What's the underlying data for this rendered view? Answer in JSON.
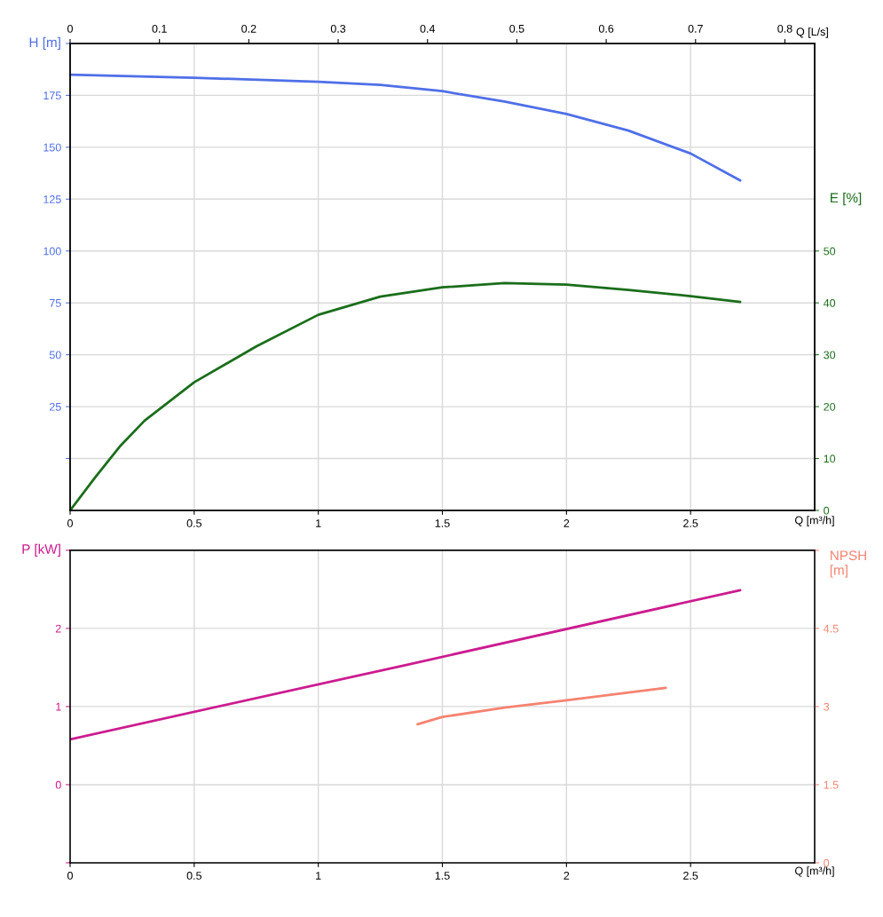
{
  "chart_data": [
    {
      "type": "line",
      "xlim": [
        0,
        3
      ],
      "xticks": [
        0,
        0.5,
        1,
        1.5,
        2,
        2.5
      ],
      "xlabel": "Q [m³/h]",
      "x2lim": [
        0,
        0.8333
      ],
      "x2ticks": [
        0,
        0.1,
        0.2,
        0.3,
        0.4,
        0.5,
        0.6,
        0.7,
        0.8
      ],
      "x2label": "Q [L/s]",
      "ylim": [
        -25,
        200
      ],
      "yticks": [
        {
          "value": 0,
          "label": null
        },
        25,
        50,
        75,
        100,
        125,
        150,
        175,
        {
          "value": 200,
          "label": null
        }
      ],
      "ylabel": "H [m]",
      "y2lim": [
        0,
        90
      ],
      "y2ticks": [
        0,
        10,
        20,
        30,
        40,
        50
      ],
      "y2label": "E [%]",
      "grid": true,
      "series": [
        {
          "color": "#4f6fe8",
          "x": [
            0,
            0.5,
            1,
            1.25,
            1.5,
            1.75,
            2,
            2.25,
            2.5,
            2.7
          ],
          "values": [
            185,
            183.5,
            181.5,
            180,
            177,
            172,
            166,
            158,
            147,
            134
          ]
        },
        {
          "color": "#1a6e1a",
          "axis": "y2",
          "x": [
            0,
            0.1,
            0.2,
            0.3,
            0.5,
            0.75,
            1,
            1.25,
            1.5,
            1.75,
            2,
            2.25,
            2.5,
            2.7
          ],
          "values": [
            0,
            6.3,
            12.3,
            17.3,
            24.7,
            31.6,
            37.7,
            41.2,
            43,
            43.8,
            43.5,
            42.5,
            41.3,
            40.2
          ]
        }
      ]
    },
    {
      "type": "line",
      "xlim": [
        0,
        3
      ],
      "xticks": [
        0,
        0.5,
        1,
        1.5,
        2,
        2.5
      ],
      "xlabel": "Q [m³/h]",
      "ylim": [
        -1,
        3
      ],
      "yticks": [
        {
          "value": -1,
          "label": null
        },
        0,
        1,
        2,
        {
          "value": 3,
          "label": null
        }
      ],
      "ylabel": "P [kW]",
      "y2lim": [
        0,
        6
      ],
      "y2ticks": [
        0,
        1.5,
        3,
        4.5,
        {
          "value": 6,
          "label": null
        }
      ],
      "y2label": "NPSH\n[m]",
      "grid": true,
      "series": [
        {
          "color": "#cc1b8f",
          "x": [
            0,
            1.35,
            2.7
          ],
          "values": [
            0.58,
            1.53,
            2.49
          ]
        },
        {
          "color": "#f58370",
          "axis": "y2",
          "x": [
            1.4,
            1.5,
            1.75,
            2,
            2.4
          ],
          "values": [
            2.66,
            2.8,
            2.98,
            3.12,
            3.36
          ]
        }
      ]
    }
  ]
}
